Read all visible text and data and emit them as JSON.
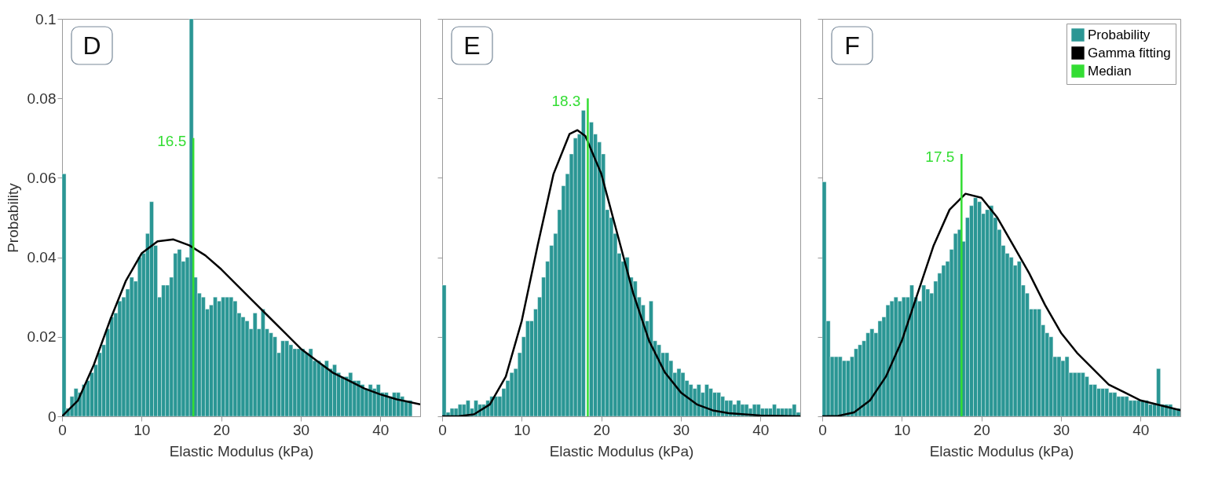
{
  "chart_data": [
    {
      "type": "histogram",
      "xlabel": "Elastic Modulus (kPa)",
      "ylabel": "Probability",
      "xlim": [
        0,
        45
      ],
      "xticks": [
        0,
        10,
        20,
        30,
        40
      ],
      "ylim": [
        0,
        0.1
      ],
      "yticks": [
        0,
        0.02,
        0.04,
        0.06,
        0.08,
        0.1
      ],
      "annotations": [
        "D",
        {
          "text": "16.5",
          "x": 16.5,
          "y": 0.07
        }
      ],
      "bins": [
        0,
        0.5,
        1,
        1.5,
        2,
        2.5,
        3,
        3.5,
        4,
        4.5,
        5,
        5.5,
        6,
        6.5,
        7,
        7.5,
        8,
        8.5,
        9,
        9.5,
        10,
        10.5,
        11,
        11.5,
        12,
        12.5,
        13,
        13.5,
        14,
        14.5,
        15,
        15.5,
        16,
        16.5,
        17,
        17.5,
        18,
        18.5,
        19,
        19.5,
        20,
        20.5,
        21,
        21.5,
        22,
        22.5,
        23,
        23.5,
        24,
        24.5,
        25,
        25.5,
        26,
        26.5,
        27,
        27.5,
        28,
        28.5,
        29,
        29.5,
        30,
        30.5,
        31,
        31.5,
        32,
        32.5,
        33,
        33.5,
        34,
        34.5,
        35,
        35.5,
        36,
        36.5,
        37,
        37.5,
        38,
        38.5,
        39,
        39.5,
        40,
        40.5,
        41,
        41.5,
        42,
        42.5,
        43,
        43.5,
        44
      ],
      "series": [
        {
          "color": "#2a9694",
          "values": [
            0.061,
            0.002,
            0.005,
            0.007,
            0.006,
            0.008,
            0.009,
            0.011,
            0.013,
            0.016,
            0.018,
            0.022,
            0.025,
            0.026,
            0.029,
            0.03,
            0.032,
            0.035,
            0.034,
            0.04,
            0.041,
            0.046,
            0.054,
            0.043,
            0.03,
            0.033,
            0.033,
            0.035,
            0.041,
            0.042,
            0.039,
            0.04,
            0.1,
            0.035,
            0.031,
            0.03,
            0.027,
            0.028,
            0.03,
            0.029,
            0.03,
            0.03,
            0.03,
            0.029,
            0.026,
            0.025,
            0.024,
            0.022,
            0.026,
            0.022,
            0.027,
            0.022,
            0.021,
            0.02,
            0.016,
            0.019,
            0.019,
            0.018,
            0.017,
            0.017,
            0.017,
            0.016,
            0.017,
            0.014,
            0.014,
            0.013,
            0.014,
            0.012,
            0.013,
            0.011,
            0.01,
            0.01,
            0.011,
            0.009,
            0.009,
            0.008,
            0.007,
            0.008,
            0.007,
            0.008,
            0.006,
            0.006,
            0.005,
            0.006,
            0.006,
            0.005,
            0.004,
            0.004
          ]
        },
        {
          "type": "line",
          "color": "#000000",
          "x": [
            0,
            2,
            4,
            6,
            8,
            10,
            12,
            14,
            16,
            18,
            20,
            22,
            24,
            26,
            28,
            30,
            32,
            34,
            36,
            38,
            40,
            42,
            45
          ],
          "values": [
            0,
            0.004,
            0.013,
            0.024,
            0.034,
            0.041,
            0.044,
            0.0445,
            0.043,
            0.0405,
            0.037,
            0.033,
            0.029,
            0.025,
            0.021,
            0.017,
            0.014,
            0.011,
            0.009,
            0.007,
            0.0055,
            0.0043,
            0.003
          ]
        },
        {
          "type": "line",
          "color": "#33dd33",
          "x": [
            16.5,
            16.5
          ],
          "values": [
            0,
            0.07
          ]
        }
      ]
    },
    {
      "type": "histogram",
      "xlabel": "Elastic Modulus (kPa)",
      "xlim": [
        0,
        45
      ],
      "xticks": [
        0,
        10,
        20,
        30,
        40
      ],
      "ylim": [
        0,
        0.1
      ],
      "yticks": [
        0,
        0.02,
        0.04,
        0.06,
        0.08,
        0.1
      ],
      "tick_labels": "x",
      "annotations": [
        "E",
        {
          "text": "18.3",
          "x": 18.3,
          "y": 0.08
        }
      ],
      "bins": [
        0,
        0.5,
        1,
        1.5,
        2,
        2.5,
        3,
        3.5,
        4,
        4.5,
        5,
        5.5,
        6,
        6.5,
        7,
        7.5,
        8,
        8.5,
        9,
        9.5,
        10,
        10.5,
        11,
        11.5,
        12,
        12.5,
        13,
        13.5,
        14,
        14.5,
        15,
        15.5,
        16,
        16.5,
        17,
        17.5,
        18,
        18.5,
        19,
        19.5,
        20,
        20.5,
        21,
        21.5,
        22,
        22.5,
        23,
        23.5,
        24,
        24.5,
        25,
        25.5,
        26,
        26.5,
        27,
        27.5,
        28,
        28.5,
        29,
        29.5,
        30,
        30.5,
        31,
        31.5,
        32,
        32.5,
        33,
        33.5,
        34,
        34.5,
        35,
        35.5,
        36,
        36.5,
        37,
        37.5,
        38,
        38.5,
        39,
        39.5,
        40,
        40.5,
        41,
        41.5,
        42,
        42.5,
        43,
        43.5,
        44,
        44.5,
        45
      ],
      "series": [
        {
          "color": "#2a9694",
          "values": [
            0.033,
            0.001,
            0.002,
            0.002,
            0.003,
            0.003,
            0.004,
            0.002,
            0.004,
            0.003,
            0.003,
            0.004,
            0.005,
            0.005,
            0.005,
            0.007,
            0.009,
            0.011,
            0.012,
            0.016,
            0.02,
            0.024,
            0.024,
            0.027,
            0.03,
            0.035,
            0.039,
            0.043,
            0.046,
            0.052,
            0.058,
            0.061,
            0.066,
            0.07,
            0.071,
            0.077,
            null,
            0.074,
            0.071,
            0.069,
            0.066,
            0.052,
            0.05,
            0.046,
            0.041,
            0.039,
            0.04,
            0.035,
            0.034,
            0.03,
            0.028,
            0.024,
            0.029,
            0.019,
            0.018,
            0.016,
            0.016,
            0.014,
            0.011,
            0.012,
            0.011,
            0.009,
            0.008,
            0.007,
            0.008,
            0.006,
            0.008,
            0.007,
            0.006,
            0.006,
            0.005,
            0.004,
            0.004,
            0.003,
            0.004,
            0.003,
            0.003,
            0.002,
            0.003,
            0.003,
            0.002,
            0.002,
            0.002,
            0.003,
            0.002,
            0.002,
            0.002,
            0.002,
            0.003,
            0.001
          ]
        },
        {
          "type": "line",
          "color": "#000000",
          "x": [
            0,
            2,
            4,
            6,
            8,
            10,
            12,
            14,
            16,
            17,
            18,
            20,
            22,
            24,
            26,
            28,
            30,
            32,
            34,
            36,
            40,
            45
          ],
          "values": [
            0,
            0,
            0.0005,
            0.003,
            0.01,
            0.024,
            0.043,
            0.061,
            0.071,
            0.072,
            0.0705,
            0.061,
            0.046,
            0.031,
            0.019,
            0.011,
            0.006,
            0.003,
            0.0015,
            0.0008,
            0.0002,
            0
          ]
        },
        {
          "type": "line",
          "color": "#33dd33",
          "x": [
            18.3,
            18.3
          ],
          "values": [
            0,
            0.08
          ]
        }
      ]
    },
    {
      "type": "histogram",
      "xlabel": "Elastic Modulus (kPa)",
      "xlim": [
        0,
        45
      ],
      "xticks": [
        0,
        10,
        20,
        30,
        40
      ],
      "ylim": [
        0,
        0.1
      ],
      "yticks": [
        0,
        0.02,
        0.04,
        0.06,
        0.08,
        0.1
      ],
      "tick_labels": "x",
      "legend": "top right",
      "annotations": [
        "F",
        {
          "text": "17.5",
          "x": 17.5,
          "y": 0.066
        }
      ],
      "bins": [
        0,
        0.5,
        1,
        1.5,
        2,
        2.5,
        3,
        3.5,
        4,
        4.5,
        5,
        5.5,
        6,
        6.5,
        7,
        7.5,
        8,
        8.5,
        9,
        9.5,
        10,
        10.5,
        11,
        11.5,
        12,
        12.5,
        13,
        13.5,
        14,
        14.5,
        15,
        15.5,
        16,
        16.5,
        17,
        17.5,
        18,
        18.5,
        19,
        19.5,
        20,
        20.5,
        21,
        21.5,
        22,
        22.5,
        23,
        23.5,
        24,
        24.5,
        25,
        25.5,
        26,
        26.5,
        27,
        27.5,
        28,
        28.5,
        29,
        29.5,
        30,
        30.5,
        31,
        31.5,
        32,
        32.5,
        33,
        33.5,
        34,
        34.5,
        35,
        35.5,
        36,
        36.5,
        37,
        37.5,
        38,
        38.5,
        39,
        39.5,
        40,
        40.5,
        41,
        41.5,
        42,
        42.5,
        43,
        43.5,
        44,
        44.5,
        45
      ],
      "series": [
        {
          "name": "Probability",
          "color": "#2a9694",
          "values": [
            0.059,
            0.024,
            0.015,
            0.015,
            0.015,
            0.014,
            0.014,
            0.015,
            0.017,
            0.018,
            0.019,
            0.021,
            0.022,
            0.021,
            0.024,
            0.025,
            0.028,
            0.029,
            0.03,
            0.029,
            0.03,
            0.03,
            0.033,
            0.03,
            0.029,
            0.033,
            0.032,
            0.031,
            0.034,
            0.036,
            0.038,
            0.039,
            0.042,
            0.046,
            0.047,
            0.044,
            0.05,
            0.053,
            0.055,
            0.054,
            0.051,
            0.052,
            0.053,
            0.05,
            0.047,
            0.043,
            0.041,
            0.04,
            0.038,
            0.039,
            0.033,
            0.031,
            0.027,
            0.027,
            0.027,
            0.023,
            0.021,
            0.02,
            0.015,
            0.015,
            0.014,
            0.015,
            0.011,
            0.011,
            0.011,
            0.011,
            0.01,
            0.008,
            0.008,
            0.007,
            0.007,
            0.007,
            0.006,
            0.006,
            0.005,
            0.005,
            0.005,
            0.004,
            0.004,
            0.004,
            0.004,
            0.004,
            0.003,
            0.003,
            0.012,
            0.003,
            0.003,
            0.003,
            0.002,
            0.002
          ]
        },
        {
          "type": "line",
          "name": "Gamma fitting",
          "color": "#000000",
          "x": [
            0,
            2,
            4,
            6,
            8,
            10,
            12,
            14,
            16,
            18,
            20,
            22,
            24,
            26,
            28,
            30,
            32,
            34,
            36,
            38,
            40,
            42,
            45
          ],
          "values": [
            0,
            0.0001,
            0.001,
            0.004,
            0.01,
            0.019,
            0.031,
            0.043,
            0.052,
            0.056,
            0.055,
            0.05,
            0.043,
            0.036,
            0.028,
            0.021,
            0.016,
            0.012,
            0.008,
            0.006,
            0.004,
            0.003,
            0.0015
          ]
        },
        {
          "type": "line",
          "name": "Median",
          "color": "#33dd33",
          "x": [
            17.5,
            17.5
          ],
          "values": [
            0,
            0.066
          ]
        }
      ]
    }
  ]
}
